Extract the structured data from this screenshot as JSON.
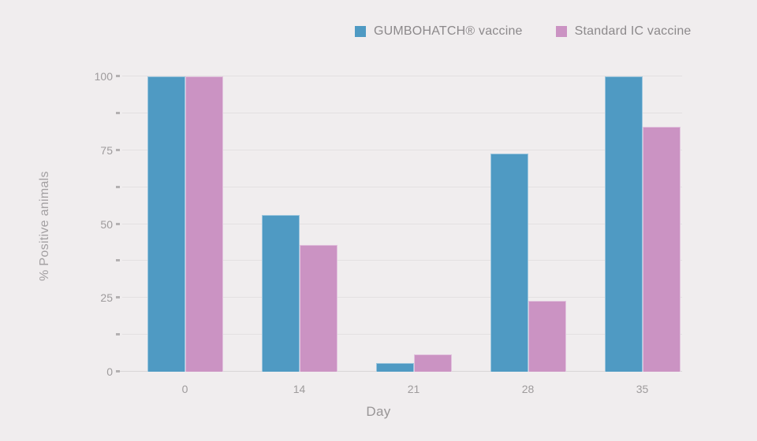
{
  "colors": {
    "background": "#f0edee",
    "gridline": "#e3e0e1",
    "axis_line": "#d8d5d6",
    "tick_mark": "#b3b0b1",
    "axis_label_text": "#9e9b9c",
    "legend_text": "#8c898b",
    "series_blue": "#4f9ac3",
    "series_pink": "#cb93c3"
  },
  "legend": {
    "items": [
      {
        "label": "GUMBOHATCH® vaccine",
        "color": "#4f9ac3"
      },
      {
        "label": "Standard IC vaccine",
        "color": "#cb93c3"
      }
    ]
  },
  "chart_data": {
    "type": "bar",
    "title": "",
    "xlabel": "Day",
    "ylabel": "% Positive animals",
    "categories": [
      "0",
      "14",
      "21",
      "28",
      "35"
    ],
    "series": [
      {
        "name": "GUMBOHATCH® vaccine",
        "color": "#4f9ac3",
        "values": [
          100,
          53,
          3,
          74,
          100
        ]
      },
      {
        "name": "Standard IC vaccine",
        "color": "#cb93c3",
        "values": [
          100,
          43,
          6,
          24,
          83
        ]
      }
    ],
    "ylim": [
      0,
      100
    ],
    "yticks_labeled": [
      0,
      25,
      50,
      75,
      100
    ],
    "ytick_minor_step": 12.5,
    "grid": true,
    "legend_position": "top"
  }
}
